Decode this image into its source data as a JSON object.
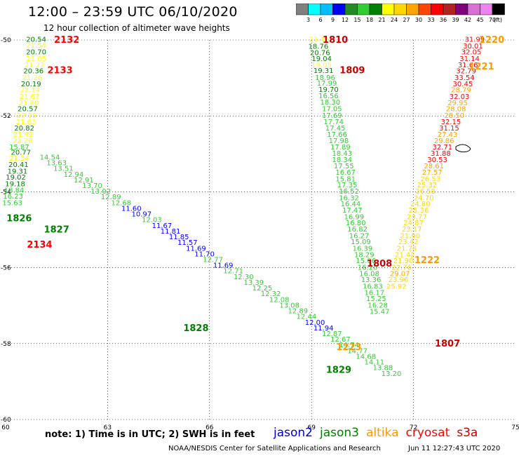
{
  "header": {
    "title": "12:00 – 23:59 UTC 06/10/2020",
    "subtitle": "12 hour collection of altimeter wave heights"
  },
  "colorbar": {
    "colors": [
      "#808080",
      "#00ffff",
      "#00bfff",
      "#0000ff",
      "#228b22",
      "#32cd32",
      "#008000",
      "#ffff00",
      "#ffd700",
      "#ffa500",
      "#ff4500",
      "#ff0000",
      "#b22222",
      "#800080",
      "#da70d6",
      "#ee82ee",
      "#000000"
    ],
    "labels": [
      "3",
      "6",
      "9",
      "12",
      "15",
      "18",
      "21",
      "24",
      "27",
      "30",
      "33",
      "36",
      "39",
      "42",
      "45",
      "70",
      "(ft)"
    ]
  },
  "footer": {
    "note": "note:  1) Time is in UTC;  2) SWH is in feet",
    "credit": "NOAA/NESDIS Center for Satellite Applications and Research",
    "timestamp": "Jun 11 12:27:43 UTC 2020"
  },
  "legend": [
    {
      "name": "jason2",
      "color": "#0000cc"
    },
    {
      "name": "jason3",
      "color": "#008000"
    },
    {
      "name": "altika",
      "color": "#ff9900"
    },
    {
      "name": "cryosat",
      "color": "#ff0000"
    },
    {
      "name": "s3a",
      "color": "#cc0000"
    }
  ],
  "chart_data": {
    "type": "scatter",
    "xlim": [
      60,
      75
    ],
    "ylim": [
      -60,
      -50
    ],
    "xticks": [
      "60",
      "63",
      "66",
      "69",
      "72",
      "75"
    ],
    "yticks": [
      "-50",
      "-52",
      "-54",
      "-56",
      "-58",
      "-60"
    ],
    "grid": true,
    "tracks": [
      {
        "id": "1810",
        "color": "#cc0000",
        "lon": 69.7,
        "lat": -50.0
      },
      {
        "id": "1809",
        "color": "#cc0000",
        "lon": 70.2,
        "lat": -50.8
      },
      {
        "id": "1808",
        "color": "#cc0000",
        "lon": 71.0,
        "lat": -55.9
      },
      {
        "id": "1807",
        "color": "#cc0000",
        "lon": 73.0,
        "lat": -58.0
      },
      {
        "id": "2132",
        "color": "#ff0000",
        "lon": 61.8,
        "lat": -50.0
      },
      {
        "id": "2133",
        "color": "#ff0000",
        "lon": 61.6,
        "lat": -50.8
      },
      {
        "id": "2134",
        "color": "#ff0000",
        "lon": 61.0,
        "lat": -55.4
      },
      {
        "id": "1220",
        "color": "#ff9900",
        "lon": 74.3,
        "lat": -50.0
      },
      {
        "id": "1221",
        "color": "#ff9900",
        "lon": 74.0,
        "lat": -50.7
      },
      {
        "id": "1222",
        "color": "#ff9900",
        "lon": 72.4,
        "lat": -55.8
      },
      {
        "id": "1223",
        "color": "#ff9900",
        "lon": 70.1,
        "lat": -58.1
      },
      {
        "id": "1826",
        "color": "#008000",
        "lon": 60.4,
        "lat": -54.7
      },
      {
        "id": "1827",
        "color": "#008000",
        "lon": 61.5,
        "lat": -55.0
      },
      {
        "id": "1828",
        "color": "#008000",
        "lon": 65.6,
        "lat": -57.6
      },
      {
        "id": "1829",
        "color": "#008000",
        "lon": 69.8,
        "lat": -58.7
      }
    ],
    "series": [
      {
        "name": "s3a track 1810",
        "points": [
          [
            69.22,
            -50.05,
            "21.46",
            "#ffff00"
          ],
          [
            69.2,
            -50.23,
            "18.76",
            "#008000"
          ],
          [
            69.25,
            -50.4,
            "20.76",
            "#008000"
          ],
          [
            69.3,
            -50.55,
            "19.04",
            "#008000"
          ],
          [
            69.3,
            -50.72,
            "19.05",
            "#ffff00"
          ],
          [
            69.35,
            -50.87,
            "19.31",
            "#008000"
          ],
          [
            69.4,
            -51.05,
            "18.96",
            "#32cd32"
          ],
          [
            69.45,
            -51.2,
            "17.99",
            "#32cd32"
          ],
          [
            69.5,
            -51.37,
            "19.70",
            "#008000"
          ],
          [
            69.5,
            -51.53,
            "16.56",
            "#32cd32"
          ],
          [
            69.55,
            -51.7,
            "18.30",
            "#32cd32"
          ],
          [
            69.6,
            -51.88,
            "17.05",
            "#32cd32"
          ],
          [
            69.6,
            -52.05,
            "17.69",
            "#32cd32"
          ],
          [
            69.65,
            -52.22,
            "17.74",
            "#32cd32"
          ],
          [
            69.7,
            -52.38,
            "17.45",
            "#32cd32"
          ],
          [
            69.75,
            -52.55,
            "17.66",
            "#32cd32"
          ],
          [
            69.8,
            -52.72,
            "17.98",
            "#32cd32"
          ],
          [
            69.85,
            -52.88,
            "17.89",
            "#32cd32"
          ],
          [
            69.9,
            -53.05,
            "18.43",
            "#32cd32"
          ],
          [
            69.9,
            -53.22,
            "18.34",
            "#32cd32"
          ],
          [
            69.95,
            -53.38,
            "17.55",
            "#32cd32"
          ],
          [
            70.0,
            -53.55,
            "16.67",
            "#32cd32"
          ],
          [
            70.0,
            -53.72,
            "15.81",
            "#32cd32"
          ],
          [
            70.05,
            -53.88,
            "17.35",
            "#32cd32"
          ],
          [
            70.1,
            -54.05,
            "16.52",
            "#32cd32"
          ],
          [
            70.1,
            -54.22,
            "16.32",
            "#32cd32"
          ],
          [
            70.15,
            -54.38,
            "16.44",
            "#32cd32"
          ],
          [
            70.2,
            -54.55,
            "17.47",
            "#32cd32"
          ],
          [
            70.25,
            -54.72,
            "16.99",
            "#32cd32"
          ],
          [
            70.3,
            -54.88,
            "16.80",
            "#32cd32"
          ],
          [
            70.35,
            -55.05,
            "16.82",
            "#32cd32"
          ],
          [
            70.4,
            -55.22,
            "16.27",
            "#32cd32"
          ],
          [
            70.45,
            -55.38,
            "15.09",
            "#32cd32"
          ],
          [
            70.5,
            -55.55,
            "16.39",
            "#32cd32"
          ],
          [
            70.55,
            -55.72,
            "18.29",
            "#32cd32"
          ],
          [
            70.6,
            -55.88,
            "15.06",
            "#32cd32"
          ],
          [
            70.65,
            -56.05,
            "16.20",
            "#32cd32"
          ],
          [
            70.7,
            -56.22,
            "16.08",
            "#32cd32"
          ],
          [
            70.75,
            -56.38,
            "13.36",
            "#32cd32"
          ],
          [
            70.8,
            -56.55,
            "16.83",
            "#32cd32"
          ],
          [
            70.85,
            -56.72,
            "16.17",
            "#32cd32"
          ],
          [
            70.9,
            -56.88,
            "15.25",
            "#32cd32"
          ],
          [
            70.95,
            -57.05,
            "16.28",
            "#32cd32"
          ],
          [
            71.0,
            -57.22,
            "15.47",
            "#32cd32"
          ]
        ]
      },
      {
        "name": "cryosat track 2132",
        "points": [
          [
            60.9,
            -50.05,
            "20.54",
            "#008000"
          ],
          [
            60.9,
            -50.2,
            "21.54",
            "#ffff00"
          ],
          [
            60.9,
            -50.38,
            "20.70",
            "#008000"
          ],
          [
            60.9,
            -50.55,
            "21.05",
            "#ffff00"
          ],
          [
            60.85,
            -50.72,
            "21.23",
            "#ffff00"
          ],
          [
            60.82,
            -50.88,
            "20.36",
            "#008000"
          ],
          [
            60.78,
            -51.05,
            "21.26",
            "#ffff00"
          ],
          [
            60.75,
            -51.22,
            "20.19",
            "#008000"
          ],
          [
            60.72,
            -51.38,
            "22.14",
            "#ffff00"
          ],
          [
            60.7,
            -51.55,
            "21.67",
            "#ffff00"
          ],
          [
            60.68,
            -51.72,
            "21.80",
            "#ffff00"
          ],
          [
            60.65,
            -51.88,
            "20.57",
            "#008000"
          ],
          [
            60.62,
            -52.05,
            "22.18",
            "#ffff00"
          ],
          [
            60.6,
            -52.22,
            "21.63",
            "#ffff00"
          ],
          [
            60.55,
            -52.38,
            "20.82",
            "#008000"
          ],
          [
            60.52,
            -52.55,
            "21.42",
            "#ffff00"
          ],
          [
            60.5,
            -52.72,
            "22.28",
            "#ffff00"
          ],
          [
            60.4,
            -52.88,
            "15.87",
            "#32cd32"
          ],
          [
            60.45,
            -53.02,
            "20.77",
            "#008000"
          ],
          [
            60.4,
            -53.18,
            "21.34",
            "#ffff00"
          ],
          [
            60.38,
            -53.35,
            "20.41",
            "#008000"
          ],
          [
            60.35,
            -53.52,
            "19.31",
            "#008000"
          ],
          [
            60.3,
            -53.68,
            "19.02",
            "#008000"
          ],
          [
            60.28,
            -53.85,
            "19.18",
            "#008000"
          ],
          [
            60.25,
            -54.02,
            "18.84",
            "#32cd32"
          ],
          [
            60.22,
            -54.18,
            "16.23",
            "#32cd32"
          ],
          [
            60.2,
            -54.35,
            "15.63",
            "#32cd32"
          ]
        ]
      },
      {
        "name": "jason3 track 1827",
        "points": [
          [
            61.3,
            -53.15,
            "14.54",
            "#32cd32"
          ],
          [
            61.5,
            -53.3,
            "13.63",
            "#32cd32"
          ],
          [
            61.7,
            -53.45,
            "13.51",
            "#32cd32"
          ],
          [
            62.0,
            -53.6,
            "12.94",
            "#32cd32"
          ],
          [
            62.3,
            -53.75,
            "12.91",
            "#32cd32"
          ],
          [
            62.55,
            -53.9,
            "13.70",
            "#32cd32"
          ],
          [
            62.8,
            -54.05,
            "13.02",
            "#32cd32"
          ],
          [
            63.1,
            -54.2,
            "12.89",
            "#32cd32"
          ],
          [
            63.4,
            -54.35,
            "12.68",
            "#32cd32"
          ],
          [
            63.7,
            -54.5,
            "11.60",
            "#0000ff"
          ],
          [
            64.0,
            -54.65,
            "10.97",
            "#0000ff"
          ],
          [
            64.3,
            -54.8,
            "12.03",
            "#32cd32"
          ],
          [
            64.6,
            -54.95,
            "11.67",
            "#0000ff"
          ],
          [
            64.85,
            -55.1,
            "11.81",
            "#0000ff"
          ],
          [
            65.1,
            -55.25,
            "11.85",
            "#0000ff"
          ],
          [
            65.35,
            -55.4,
            "11.57",
            "#0000ff"
          ],
          [
            65.6,
            -55.55,
            "11.69",
            "#0000ff"
          ],
          [
            65.85,
            -55.7,
            "11.70",
            "#0000ff"
          ],
          [
            66.1,
            -55.85,
            "12.77",
            "#32cd32"
          ],
          [
            66.4,
            -56.0,
            "11.69",
            "#0000ff"
          ],
          [
            66.7,
            -56.15,
            "12.71",
            "#32cd32"
          ],
          [
            67.0,
            -56.3,
            "12.30",
            "#32cd32"
          ],
          [
            67.3,
            -56.45,
            "13.39",
            "#32cd32"
          ],
          [
            67.55,
            -56.6,
            "12.25",
            "#32cd32"
          ],
          [
            67.8,
            -56.75,
            "12.32",
            "#32cd32"
          ],
          [
            68.05,
            -56.9,
            "12.08",
            "#32cd32"
          ],
          [
            68.35,
            -57.05,
            "13.08",
            "#32cd32"
          ],
          [
            68.6,
            -57.2,
            "12.89",
            "#32cd32"
          ],
          [
            68.85,
            -57.35,
            "12.44",
            "#32cd32"
          ],
          [
            69.1,
            -57.5,
            "12.00",
            "#0000ff"
          ],
          [
            69.35,
            -57.65,
            "11.94",
            "#0000ff"
          ],
          [
            69.6,
            -57.8,
            "12.87",
            "#32cd32"
          ],
          [
            69.85,
            -57.95,
            "12.67",
            "#32cd32"
          ],
          [
            70.1,
            -58.1,
            "14.74",
            "#32cd32"
          ],
          [
            70.35,
            -58.25,
            "14.77",
            "#32cd32"
          ],
          [
            70.6,
            -58.4,
            "14.68",
            "#32cd32"
          ],
          [
            70.85,
            -58.55,
            "14.11",
            "#32cd32"
          ],
          [
            71.1,
            -58.7,
            "13.88",
            "#32cd32"
          ],
          [
            71.35,
            -58.85,
            "13.20",
            "#32cd32"
          ]
        ]
      },
      {
        "name": "altika track 1221",
        "points": [
          [
            73.8,
            -50.05,
            "31.99",
            "#ff0000"
          ],
          [
            73.75,
            -50.22,
            "30.01",
            "#ff0000"
          ],
          [
            73.7,
            -50.38,
            "32.05",
            "#ff0000"
          ],
          [
            73.65,
            -50.55,
            "31.14",
            "#ff0000"
          ],
          [
            73.6,
            -50.72,
            "31.66",
            "#ff0000"
          ],
          [
            73.55,
            -50.88,
            "32.79",
            "#ff0000"
          ],
          [
            73.5,
            -51.05,
            "33.54",
            "#ff0000"
          ],
          [
            73.45,
            -51.22,
            "30.45",
            "#ff0000"
          ],
          [
            73.4,
            -51.38,
            "28.79",
            "#ffa500"
          ],
          [
            73.35,
            -51.55,
            "32.03",
            "#ff0000"
          ],
          [
            73.3,
            -51.72,
            "29.95",
            "#ffa500"
          ],
          [
            73.25,
            -51.88,
            "28.08",
            "#ffa500"
          ],
          [
            73.2,
            -52.05,
            "28.50",
            "#ffa500"
          ],
          [
            73.1,
            -52.22,
            "32.15",
            "#ff0000"
          ],
          [
            73.05,
            -52.38,
            "31.15",
            "#ff0000"
          ],
          [
            73.0,
            -52.55,
            "27.43",
            "#ffa500"
          ],
          [
            72.9,
            -52.72,
            "29.86",
            "#ffa500"
          ],
          [
            72.85,
            -52.88,
            "32.71",
            "#ff0000"
          ],
          [
            72.8,
            -53.05,
            "31.88",
            "#ff0000"
          ],
          [
            72.7,
            -53.22,
            "30.53",
            "#ff0000"
          ],
          [
            72.6,
            -53.38,
            "28.61",
            "#ffa500"
          ],
          [
            72.55,
            -53.55,
            "27.57",
            "#ffa500"
          ],
          [
            72.5,
            -53.72,
            "26.53",
            "#ffd700"
          ],
          [
            72.4,
            -53.88,
            "25.32",
            "#ffd700"
          ],
          [
            72.35,
            -54.05,
            "26.58",
            "#ffd700"
          ],
          [
            72.3,
            -54.22,
            "24.70",
            "#ffd700"
          ],
          [
            72.2,
            -54.38,
            "24.80",
            "#ffd700"
          ],
          [
            72.15,
            -54.55,
            "25.36",
            "#ffd700"
          ],
          [
            72.1,
            -54.72,
            "23.77",
            "#ffd700"
          ],
          [
            72.0,
            -54.88,
            "24.87",
            "#ffd700"
          ],
          [
            71.95,
            -55.05,
            "23.17",
            "#ffd700"
          ],
          [
            71.9,
            -55.22,
            "21.90",
            "#ffd700"
          ],
          [
            71.85,
            -55.38,
            "23.42",
            "#ffd700"
          ],
          [
            71.8,
            -55.55,
            "21.76",
            "#ffd700"
          ],
          [
            71.75,
            -55.72,
            "21.42",
            "#ffd700"
          ],
          [
            71.7,
            -55.88,
            "21.90",
            "#ffd700"
          ],
          [
            71.65,
            -56.05,
            "22.76",
            "#ffd700"
          ],
          [
            71.6,
            -56.22,
            "29.07",
            "#ffa500"
          ],
          [
            71.55,
            -56.38,
            "23.96",
            "#ffd700"
          ],
          [
            71.5,
            -56.55,
            "25.92",
            "#ffd700"
          ]
        ]
      }
    ]
  }
}
